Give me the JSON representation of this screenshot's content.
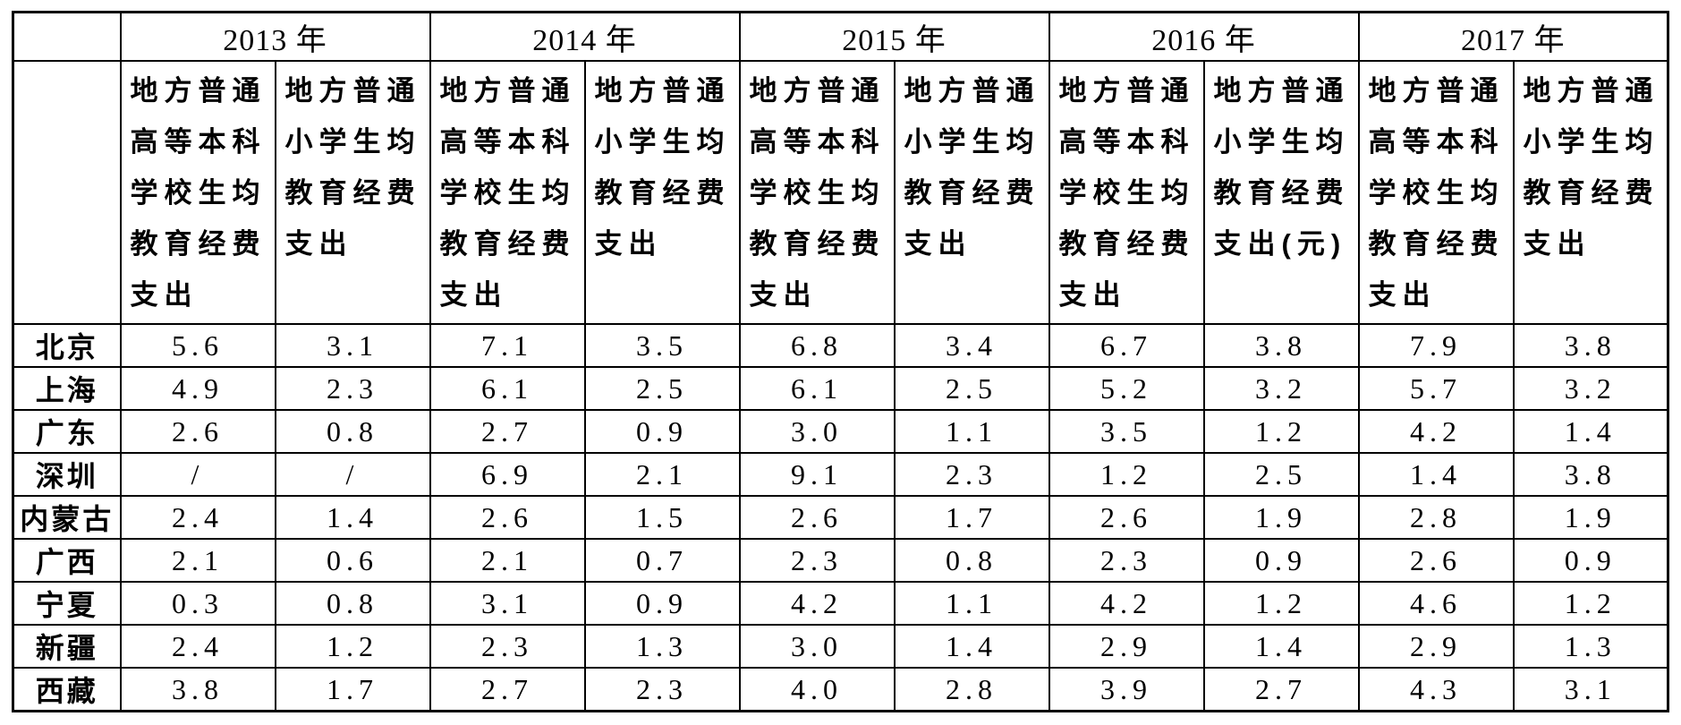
{
  "colors": {
    "text": "#000000",
    "background": "#ffffff",
    "border": "#000000"
  },
  "table": {
    "corner_label": "",
    "year_headers": [
      "2013 年",
      "2014 年",
      "2015 年",
      "2016 年",
      "2017 年"
    ],
    "sub_headers": [
      {
        "university": "地方普通\n高等本科\n学校生均\n教育经费\n支出",
        "primary": "地方普通\n小学生均\n教育经费\n支出"
      },
      {
        "university": "地方普通\n高等本科\n学校生均\n教育经费\n支出",
        "primary": "地方普通\n小学生均\n教育经费\n支出"
      },
      {
        "university": "地方普通\n高等本科\n学校生均\n教育经费\n支出",
        "primary": "地方普通\n小学生均\n教育经费\n支出"
      },
      {
        "university": "地方普通\n高等本科\n学校生均\n教育经费\n支出",
        "primary": "地方普通\n小学生均\n教育经费\n支出(元)"
      },
      {
        "university": "地方普通\n高等本科\n学校生均\n教育经费\n支出",
        "primary": "地方普通\n小学生均\n教育经费\n支出"
      }
    ],
    "rows": [
      {
        "region": "北京",
        "values": [
          "5.6",
          "3.1",
          "7.1",
          "3.5",
          "6.8",
          "3.4",
          "6.7",
          "3.8",
          "7.9",
          "3.8"
        ]
      },
      {
        "region": "上海",
        "values": [
          "4.9",
          "2.3",
          "6.1",
          "2.5",
          "6.1",
          "2.5",
          "5.2",
          "3.2",
          "5.7",
          "3.2"
        ]
      },
      {
        "region": "广东",
        "values": [
          "2.6",
          "0.8",
          "2.7",
          "0.9",
          "3.0",
          "1.1",
          "3.5",
          "1.2",
          "4.2",
          "1.4"
        ]
      },
      {
        "region": "深圳",
        "values": [
          "/",
          "/",
          "6.9",
          "2.1",
          "9.1",
          "2.3",
          "1.2",
          "2.5",
          "1.4",
          "3.8"
        ]
      },
      {
        "region": "内蒙古",
        "values": [
          "2.4",
          "1.4",
          "2.6",
          "1.5",
          "2.6",
          "1.7",
          "2.6",
          "1.9",
          "2.8",
          "1.9"
        ]
      },
      {
        "region": "广西",
        "values": [
          "2.1",
          "0.6",
          "2.1",
          "0.7",
          "2.3",
          "0.8",
          "2.3",
          "0.9",
          "2.6",
          "0.9"
        ]
      },
      {
        "region": "宁夏",
        "values": [
          "0.3",
          "0.8",
          "3.1",
          "0.9",
          "4.2",
          "1.1",
          "4.2",
          "1.2",
          "4.6",
          "1.2"
        ]
      },
      {
        "region": "新疆",
        "values": [
          "2.4",
          "1.2",
          "2.3",
          "1.3",
          "3.0",
          "1.4",
          "2.9",
          "1.4",
          "2.9",
          "1.3"
        ]
      },
      {
        "region": "西藏",
        "values": [
          "3.8",
          "1.7",
          "2.7",
          "2.3",
          "4.0",
          "2.8",
          "3.9",
          "2.7",
          "4.3",
          "3.1"
        ]
      }
    ]
  }
}
